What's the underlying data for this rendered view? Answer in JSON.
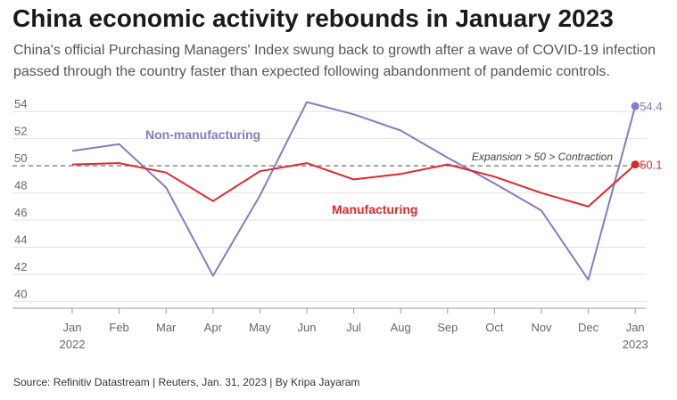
{
  "title": "China economic activity rebounds in January 2023",
  "subtitle": "China's official Purchasing Managers' Index swung back to growth after a wave of COVID-19 infection passed through the country faster than expected following abandonment of pandemic controls.",
  "source": "Source: Refinitiv Datastream | Reuters, Jan. 31, 2023 | By Kripa Jayaram",
  "colors": {
    "manufacturing": "#e0272b",
    "non_manufacturing": "#8c78c4",
    "reference": "#888888",
    "grid": "#e2e2e2",
    "baseline": "#999999"
  },
  "chart_data": {
    "type": "line",
    "categories": [
      "Jan",
      "Feb",
      "Mar",
      "Apr",
      "May",
      "Jun",
      "Jul",
      "Aug",
      "Sep",
      "Oct",
      "Nov",
      "Dec",
      "Jan"
    ],
    "year_labels": {
      "0": "2022",
      "12": "2023"
    },
    "yticks": [
      "54",
      "52",
      "50",
      "48",
      "46",
      "44",
      "42",
      "40"
    ],
    "ylim": [
      39.5,
      55
    ],
    "grid": true,
    "series": [
      {
        "name": "Non-manufacturing",
        "key": "non_manufacturing",
        "values": [
          51.1,
          51.6,
          48.4,
          41.9,
          47.8,
          54.7,
          53.8,
          52.6,
          50.6,
          48.7,
          46.7,
          41.6,
          54.4
        ],
        "end_label": "54.4"
      },
      {
        "name": "Manufacturing",
        "key": "manufacturing",
        "values": [
          50.1,
          50.2,
          49.5,
          47.4,
          49.6,
          50.2,
          49.0,
          49.4,
          50.1,
          49.2,
          48.0,
          47.0,
          50.1
        ],
        "end_label": "50.1"
      }
    ],
    "reference_line": {
      "value": 50,
      "label": "Expansion > 50 > Contraction"
    }
  }
}
